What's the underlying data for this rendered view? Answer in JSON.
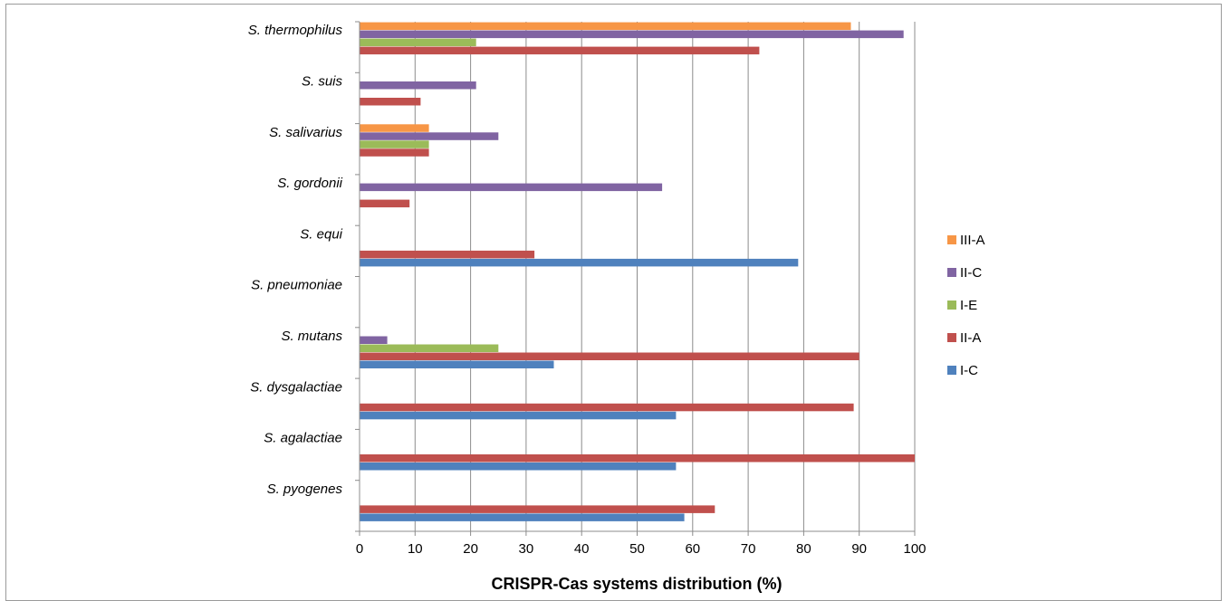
{
  "chart_data": {
    "type": "bar",
    "orientation": "horizontal",
    "xlabel": "CRISPR-Cas systems distribution (%)",
    "xlim": [
      0,
      100
    ],
    "x_ticks": [
      "0",
      "10",
      "20",
      "30",
      "40",
      "50",
      "60",
      "70",
      "80",
      "90",
      "100"
    ],
    "grid": "vertical",
    "legend_position": "right",
    "categories": [
      "S. pyogenes",
      "S. agalactiae",
      "S. dysgalactiae",
      "S. mutans",
      "S. pneumoniae",
      "S. equi",
      "S. gordonii",
      "S. salivarius",
      "S. suis",
      "S. thermophilus"
    ],
    "series": [
      {
        "name": "I-C",
        "color": "#4f81bd",
        "values": [
          58.5,
          57,
          57,
          35,
          0,
          79,
          0,
          0,
          0,
          0
        ]
      },
      {
        "name": "II-A",
        "color": "#c0504d",
        "values": [
          64,
          100,
          89,
          90,
          0,
          31.5,
          9,
          12.5,
          11,
          72
        ]
      },
      {
        "name": "I-E",
        "color": "#9bbb59",
        "values": [
          0,
          0,
          0,
          25,
          0,
          0,
          0,
          12.5,
          0,
          21
        ]
      },
      {
        "name": "II-C",
        "color": "#8064a2",
        "values": [
          0,
          0,
          0,
          5,
          0,
          0,
          54.5,
          25,
          21,
          98
        ]
      },
      {
        "name": "III-A",
        "color": "#f79646",
        "values": [
          0,
          0,
          0,
          0,
          0,
          0,
          0,
          12.5,
          0,
          88.5
        ]
      }
    ]
  }
}
